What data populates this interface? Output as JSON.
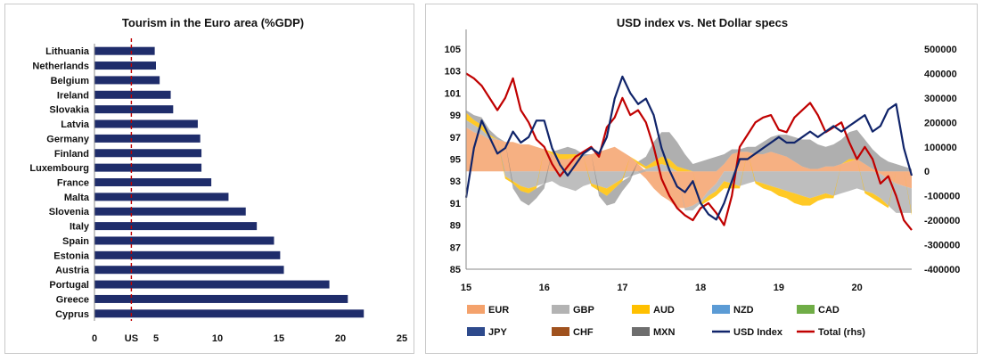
{
  "chart_data": [
    {
      "type": "bar",
      "orientation": "horizontal",
      "title": "Tourism in the Euro area (%GDP)",
      "xlabel": "",
      "ylabel": "",
      "xlim": [
        0,
        25
      ],
      "x_ticks": [
        "0",
        "5",
        "10",
        "15",
        "20",
        "25"
      ],
      "reference_line": {
        "label": "US",
        "value": 3.0,
        "style": "dashed",
        "color": "#c00000"
      },
      "bar_color": "#1f2d6b",
      "grid": false,
      "categories": [
        "Lithuania",
        "Netherlands",
        "Belgium",
        "Ireland",
        "Slovakia",
        "Latvia",
        "Germany",
        "Finland",
        "Luxembourg",
        "France",
        "Malta",
        "Slovenia",
        "Italy",
        "Spain",
        "Estonia",
        "Austria",
        "Portugal",
        "Greece",
        "Cyprus"
      ],
      "values": [
        4.9,
        5.0,
        5.3,
        6.2,
        6.4,
        8.4,
        8.6,
        8.7,
        8.7,
        9.5,
        10.9,
        12.3,
        13.2,
        14.6,
        15.1,
        15.4,
        19.1,
        20.6,
        21.9
      ]
    },
    {
      "type": "area",
      "title": "USD index vs. Net Dollar specs",
      "xlabel": "",
      "ylabel": "",
      "y2label": "",
      "x_ticks": [
        "15",
        "16",
        "17",
        "18",
        "19",
        "20"
      ],
      "xlim": [
        2015,
        2020.7
      ],
      "ylim": [
        85,
        105
      ],
      "y_ticks": [
        "85",
        "87",
        "89",
        "91",
        "93",
        "95",
        "97",
        "99",
        "101",
        "103",
        "105"
      ],
      "y2lim": [
        -400000,
        500000
      ],
      "y2_ticks": [
        "-400000",
        "-300000",
        "-200000",
        "-100000",
        "0",
        "100000",
        "200000",
        "300000",
        "400000",
        "500000"
      ],
      "grid": false,
      "legend_position": "bottom",
      "legend": [
        {
          "name": "EUR",
          "color": "#f4a26c",
          "kind": "area"
        },
        {
          "name": "GBP",
          "color": "#b3b3b3",
          "kind": "area"
        },
        {
          "name": "AUD",
          "color": "#ffc000",
          "kind": "area"
        },
        {
          "name": "NZD",
          "color": "#5b9bd5",
          "kind": "area"
        },
        {
          "name": "CAD",
          "color": "#70ad47",
          "kind": "area"
        },
        {
          "name": "JPY",
          "color": "#2e4a8c",
          "kind": "area"
        },
        {
          "name": "CHF",
          "color": "#a0521e",
          "kind": "area"
        },
        {
          "name": "MXN",
          "color": "#6e6e6e",
          "kind": "area"
        },
        {
          "name": "USD Index",
          "color": "#10246a",
          "kind": "line"
        },
        {
          "name": "Total (rhs)",
          "color": "#c00000",
          "kind": "line"
        }
      ],
      "x": [
        2015.0,
        2015.1,
        2015.2,
        2015.3,
        2015.4,
        2015.5,
        2015.6,
        2015.7,
        2015.8,
        2015.9,
        2016.0,
        2016.1,
        2016.2,
        2016.3,
        2016.4,
        2016.5,
        2016.6,
        2016.7,
        2016.8,
        2016.9,
        2017.0,
        2017.1,
        2017.2,
        2017.3,
        2017.4,
        2017.5,
        2017.6,
        2017.7,
        2017.8,
        2017.9,
        2018.0,
        2018.1,
        2018.2,
        2018.3,
        2018.4,
        2018.5,
        2018.6,
        2018.7,
        2018.8,
        2018.9,
        2019.0,
        2019.1,
        2019.2,
        2019.3,
        2019.4,
        2019.5,
        2019.6,
        2019.7,
        2019.8,
        2019.9,
        2020.0,
        2020.1,
        2020.2,
        2020.3,
        2020.4,
        2020.5,
        2020.6,
        2020.7
      ],
      "series": [
        {
          "name": "USD Index",
          "axis": "left",
          "values": [
            91.5,
            96,
            98.5,
            97,
            95.5,
            96,
            97.5,
            96.5,
            97,
            98.5,
            98.5,
            96,
            94.5,
            93.5,
            94.5,
            95.5,
            96,
            95.5,
            97,
            100.5,
            102.5,
            101,
            100,
            100.5,
            99,
            96,
            94,
            92.5,
            92,
            93,
            91,
            90,
            89.5,
            91,
            93,
            95,
            95,
            95.5,
            96,
            96.5,
            97,
            96.5,
            96.5,
            97,
            97.5,
            97,
            97.5,
            98,
            97.5,
            98,
            98.5,
            99,
            97.5,
            98,
            99.5,
            100,
            96,
            93.5
          ]
        },
        {
          "name": "Total (rhs)",
          "axis": "right",
          "values": [
            400000,
            380000,
            350000,
            300000,
            250000,
            300000,
            380000,
            250000,
            200000,
            130000,
            100000,
            30000,
            -20000,
            20000,
            60000,
            80000,
            100000,
            60000,
            180000,
            220000,
            300000,
            230000,
            250000,
            200000,
            100000,
            -30000,
            -100000,
            -150000,
            -180000,
            -200000,
            -150000,
            -130000,
            -170000,
            -220000,
            -100000,
            100000,
            150000,
            200000,
            220000,
            230000,
            170000,
            160000,
            220000,
            250000,
            280000,
            230000,
            160000,
            180000,
            200000,
            120000,
            50000,
            100000,
            50000,
            -50000,
            -20000,
            -100000,
            -200000,
            -240000
          ]
        },
        {
          "name": "EUR",
          "axis": "right",
          "values": [
            180000,
            160000,
            150000,
            130000,
            130000,
            120000,
            120000,
            110000,
            110000,
            100000,
            90000,
            70000,
            50000,
            50000,
            60000,
            60000,
            70000,
            80000,
            90000,
            100000,
            80000,
            60000,
            30000,
            -30000,
            -70000,
            -100000,
            -120000,
            -150000,
            -150000,
            -140000,
            -120000,
            -80000,
            -50000,
            30000,
            70000,
            80000,
            80000,
            70000,
            70000,
            80000,
            70000,
            60000,
            40000,
            20000,
            10000,
            10000,
            20000,
            20000,
            30000,
            40000,
            50000,
            30000,
            10000,
            -10000,
            -30000,
            -50000,
            -60000,
            -70000
          ]
        },
        {
          "name": "GBP",
          "axis": "right",
          "values": [
            30000,
            30000,
            20000,
            10000,
            0,
            -20000,
            -40000,
            -60000,
            -70000,
            -60000,
            -50000,
            -40000,
            -60000,
            -70000,
            -80000,
            -60000,
            -50000,
            -60000,
            -70000,
            -50000,
            -30000,
            -20000,
            -10000,
            10000,
            20000,
            30000,
            20000,
            0,
            -10000,
            -20000,
            -10000,
            -20000,
            -30000,
            -40000,
            -50000,
            -60000,
            -50000,
            -40000,
            -50000,
            -60000,
            -70000,
            -80000,
            -90000,
            -100000,
            -110000,
            -100000,
            -90000,
            -100000,
            -90000,
            -80000,
            -70000,
            -80000,
            -90000,
            -100000,
            -110000,
            -120000,
            -110000,
            -100000
          ]
        },
        {
          "name": "AUD",
          "axis": "right",
          "values": [
            30000,
            20000,
            20000,
            10000,
            0,
            -10000,
            -10000,
            -20000,
            -20000,
            -10000,
            0,
            10000,
            20000,
            20000,
            10000,
            0,
            -10000,
            -20000,
            -30000,
            -20000,
            -10000,
            0,
            10000,
            10000,
            20000,
            30000,
            30000,
            20000,
            10000,
            0,
            -10000,
            -20000,
            -20000,
            -30000,
            -20000,
            -10000,
            0,
            -10000,
            -20000,
            -20000,
            -30000,
            -30000,
            -40000,
            -40000,
            -30000,
            -20000,
            -20000,
            -10000,
            0,
            10000,
            0,
            -10000,
            -20000,
            -20000,
            -10000,
            0,
            0,
            -10000
          ]
        },
        {
          "name": "MXN",
          "axis": "right",
          "values": [
            10000,
            20000,
            30000,
            20000,
            10000,
            0,
            -20000,
            -40000,
            -50000,
            -40000,
            -20000,
            0,
            20000,
            30000,
            20000,
            10000,
            0,
            -20000,
            -40000,
            -60000,
            -40000,
            -20000,
            0,
            40000,
            80000,
            100000,
            110000,
            100000,
            60000,
            30000,
            40000,
            50000,
            60000,
            40000,
            20000,
            10000,
            20000,
            30000,
            50000,
            60000,
            80000,
            90000,
            100000,
            110000,
            120000,
            100000,
            80000,
            90000,
            100000,
            110000,
            120000,
            100000,
            80000,
            60000,
            40000,
            30000,
            20000,
            10000
          ]
        }
      ]
    }
  ]
}
